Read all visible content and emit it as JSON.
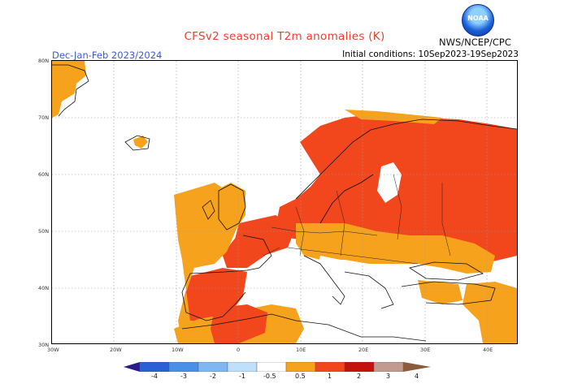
{
  "title": "CFSv2 seasonal T2m anomalies (K)",
  "period": "Dec-Jan-Feb 2023/2024",
  "initial_conditions": "Initial conditions: 10Sep2023-19Sep2023",
  "agency": "NWS/NCEP/CPC",
  "logo_text": "NOAA",
  "lat_labels": [
    "80N",
    "70N",
    "60N",
    "50N",
    "40N",
    "30N"
  ],
  "lon_labels": [
    "30W",
    "20W",
    "10W",
    "0",
    "10E",
    "20E",
    "30E",
    "40E"
  ],
  "legend": {
    "labels": [
      "-4",
      "-3",
      "-2",
      "-1",
      "-0.5",
      "0.5",
      "1",
      "2",
      "3",
      "4"
    ],
    "colors": [
      "#2b1a8c",
      "#2b5fd6",
      "#4a8fe8",
      "#7fb7f2",
      "#bfe0fb",
      "#ffffff",
      "#f7a21c",
      "#f2461c",
      "#c4130c",
      "#c39a8f",
      "#8c5b3d"
    ]
  }
}
